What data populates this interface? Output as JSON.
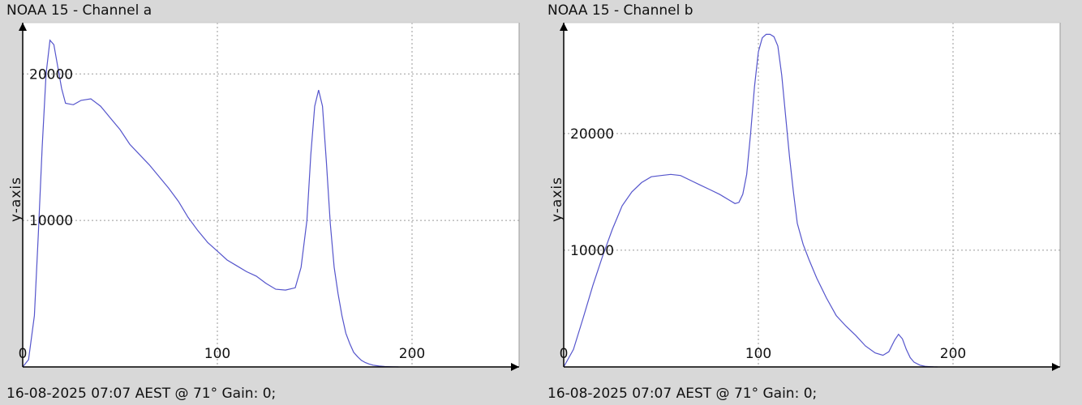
{
  "chart_data": [
    {
      "type": "line",
      "title": "NOAA 15 - Channel a",
      "ylabel": "y-axis",
      "footer": "16-08-2025 07:07 AEST @ 71° Gain: 0;",
      "xlim": [
        0,
        255
      ],
      "ylim": [
        0,
        23500
      ],
      "xticks": [
        0,
        100,
        200
      ],
      "yticks": [
        10000,
        20000
      ],
      "grid": true,
      "series": [
        {
          "color": "#5555cc",
          "x": [
            0,
            3,
            6,
            8,
            10,
            12,
            14,
            16,
            18,
            20,
            22,
            26,
            30,
            35,
            40,
            45,
            50,
            55,
            60,
            65,
            70,
            75,
            80,
            85,
            90,
            95,
            100,
            105,
            110,
            115,
            120,
            125,
            130,
            135,
            140,
            143,
            146,
            148,
            150,
            152,
            154,
            156,
            158,
            160,
            162,
            164,
            166,
            168,
            170,
            172,
            174,
            176,
            178,
            180,
            183,
            186,
            190,
            193
          ],
          "y": [
            0,
            500,
            3500,
            9000,
            15000,
            20000,
            22300,
            22000,
            20500,
            19000,
            18000,
            17900,
            18200,
            18300,
            17800,
            17000,
            16200,
            15200,
            14500,
            13800,
            13000,
            12200,
            11300,
            10200,
            9300,
            8500,
            7900,
            7300,
            6900,
            6500,
            6200,
            5700,
            5300,
            5250,
            5400,
            6800,
            10000,
            14500,
            17800,
            18900,
            17800,
            14000,
            9800,
            6800,
            5000,
            3500,
            2300,
            1600,
            1000,
            700,
            450,
            300,
            200,
            120,
            60,
            30,
            10,
            0
          ]
        }
      ]
    },
    {
      "type": "line",
      "title": "NOAA 15 - Channel b",
      "ylabel": "y-axis",
      "footer": "16-08-2025 07:07 AEST @ 71° Gain: 0;",
      "xlim": [
        0,
        255
      ],
      "ylim": [
        0,
        29500
      ],
      "xticks": [
        0,
        100,
        200
      ],
      "yticks": [
        10000,
        20000
      ],
      "grid": true,
      "series": [
        {
          "color": "#5555cc",
          "x": [
            0,
            5,
            10,
            15,
            20,
            25,
            30,
            35,
            40,
            45,
            50,
            55,
            60,
            65,
            70,
            75,
            80,
            85,
            88,
            90,
            92,
            94,
            96,
            98,
            100,
            102,
            104,
            106,
            108,
            110,
            112,
            114,
            116,
            118,
            120,
            123,
            126,
            130,
            135,
            140,
            145,
            150,
            155,
            160,
            164,
            167,
            170,
            172,
            174,
            176,
            178,
            180,
            183,
            186,
            190,
            192
          ],
          "y": [
            0,
            1500,
            4200,
            7000,
            9500,
            11800,
            13800,
            15000,
            15800,
            16300,
            16400,
            16500,
            16400,
            16000,
            15600,
            15200,
            14800,
            14300,
            14000,
            14100,
            14800,
            16500,
            20000,
            24000,
            27000,
            28200,
            28500,
            28500,
            28300,
            27500,
            25000,
            21500,
            18000,
            15000,
            12300,
            10500,
            9200,
            7600,
            5900,
            4400,
            3500,
            2700,
            1800,
            1200,
            1000,
            1300,
            2300,
            2800,
            2400,
            1500,
            800,
            400,
            150,
            40,
            10,
            0
          ]
        }
      ]
    }
  ]
}
